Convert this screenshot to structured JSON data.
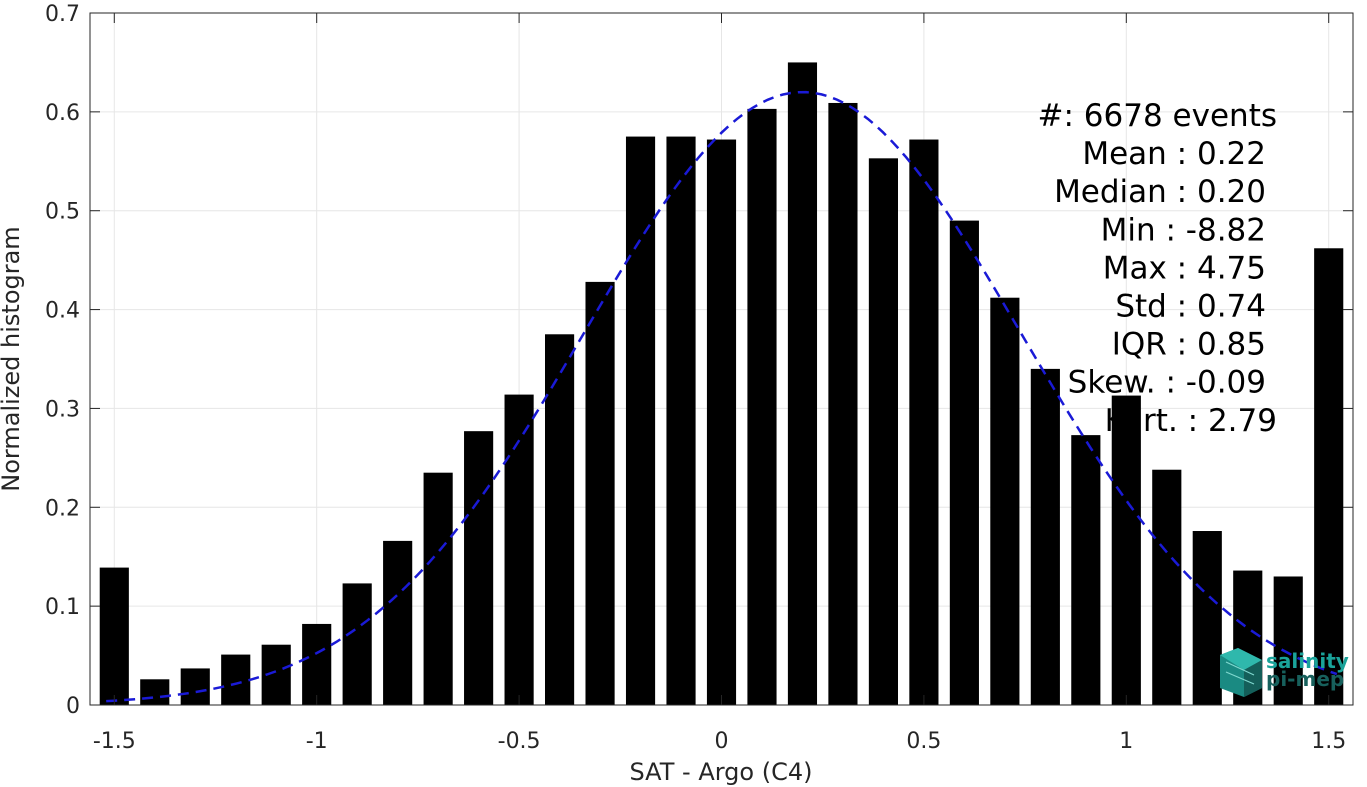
{
  "chart_data": {
    "type": "bar",
    "title": "",
    "xlabel": "SAT - Argo (C4)",
    "ylabel": "Normalized histogram",
    "xlim": [
      -1.56,
      1.56
    ],
    "ylim": [
      0,
      0.7
    ],
    "grid": true,
    "xticks": [
      -1.5,
      -1,
      -0.5,
      0,
      0.5,
      1,
      1.5
    ],
    "xtick_labels": [
      "-1.5",
      "-1",
      "-0.5",
      "0",
      "0.5",
      "1",
      "1.5"
    ],
    "yticks": [
      0,
      0.1,
      0.2,
      0.3,
      0.4,
      0.5,
      0.6,
      0.7
    ],
    "ytick_labels": [
      "0",
      "0.1",
      "0.2",
      "0.3",
      "0.4",
      "0.5",
      "0.6",
      "0.7"
    ],
    "bars": {
      "x": [
        -1.5,
        -1.4,
        -1.3,
        -1.2,
        -1.1,
        -1.0,
        -0.9,
        -0.8,
        -0.7,
        -0.6,
        -0.5,
        -0.4,
        -0.3,
        -0.2,
        -0.1,
        0.0,
        0.1,
        0.2,
        0.3,
        0.4,
        0.5,
        0.6,
        0.7,
        0.8,
        0.9,
        1.0,
        1.1,
        1.2,
        1.3,
        1.4,
        1.5
      ],
      "values": [
        0.139,
        0.026,
        0.037,
        0.051,
        0.061,
        0.082,
        0.123,
        0.166,
        0.235,
        0.277,
        0.314,
        0.375,
        0.428,
        0.575,
        0.575,
        0.572,
        0.603,
        0.65,
        0.609,
        0.553,
        0.572,
        0.49,
        0.412,
        0.34,
        0.273,
        0.313,
        0.238,
        0.176,
        0.136,
        0.13,
        0.462
      ],
      "color": "#000000"
    },
    "fit_curve": {
      "type": "gaussian",
      "mean": 0.2,
      "peak": 0.62,
      "sigma": 0.54,
      "x_range": [
        -1.52,
        1.52
      ],
      "color": "#1a1ad6",
      "style": "dashed"
    },
    "stats": [
      {
        "label": "#",
        "sep": ": ",
        "value": "6678 events"
      },
      {
        "label": "Mean",
        "sep": " : ",
        "value": "0.22"
      },
      {
        "label": "Median",
        "sep": " : ",
        "value": "0.20"
      },
      {
        "label": "Min",
        "sep": " : ",
        "value": "-8.82"
      },
      {
        "label": "Max",
        "sep": " : ",
        "value": "4.75"
      },
      {
        "label": "Std",
        "sep": " : ",
        "value": "0.74"
      },
      {
        "label": "IQR",
        "sep": " : ",
        "value": "0.85"
      },
      {
        "label": "Skew.",
        "sep": " : ",
        "value": "-0.09"
      },
      {
        "label": "Kurt.",
        "sep": " : ",
        "value": "2.79"
      }
    ],
    "logo": {
      "line1": "salinity",
      "line2": "pi-mep",
      "color_primary": "#1aa39a",
      "color_secondary": "#17605c"
    }
  }
}
